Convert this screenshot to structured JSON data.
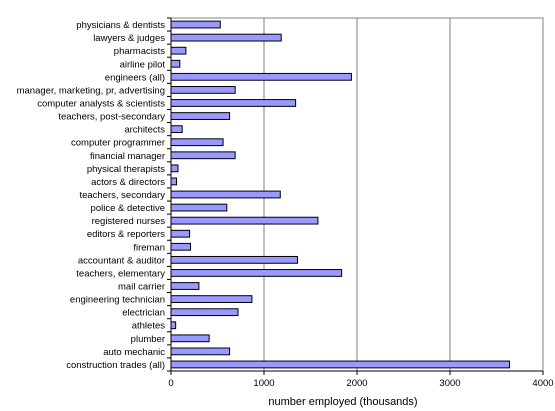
{
  "chart_data": {
    "type": "bar",
    "orientation": "horizontal",
    "categories": [
      "physicians & dentists",
      "lawyers & judges",
      "pharmacists",
      "airline pilot",
      "engineers (all)",
      "manager, marketing, pr, advertising",
      "computer analysts & scientists",
      "teachers, post-secondary",
      "architects",
      "computer programmer",
      "financial manager",
      "physical therapists",
      "actors & directors",
      "teachers, secondary",
      "police & detective",
      "registered nurses",
      "editors & reporters",
      "fireman",
      "accountant & auditor",
      "teachers, elementary",
      "mail carrier",
      "engineering technician",
      "electrician",
      "athletes",
      "plumber",
      "auto mechanic",
      "construction trades (all)"
    ],
    "values": [
      530,
      1185,
      160,
      95,
      1940,
      690,
      1340,
      630,
      120,
      560,
      690,
      75,
      60,
      1175,
      600,
      1580,
      200,
      210,
      1360,
      1835,
      300,
      870,
      720,
      50,
      410,
      630,
      3640
    ],
    "xlim": [
      0,
      4000
    ],
    "xticks": [
      "0",
      "1000",
      "2000",
      "3000",
      "4000"
    ],
    "xlabel": "number employed (thousands)",
    "ylabel": "",
    "title": "",
    "grid": "vertical major gridlines",
    "bar_color": "#9999ff",
    "bar_stroke": "#000000",
    "plot_border": "#808080",
    "legend": "none"
  }
}
